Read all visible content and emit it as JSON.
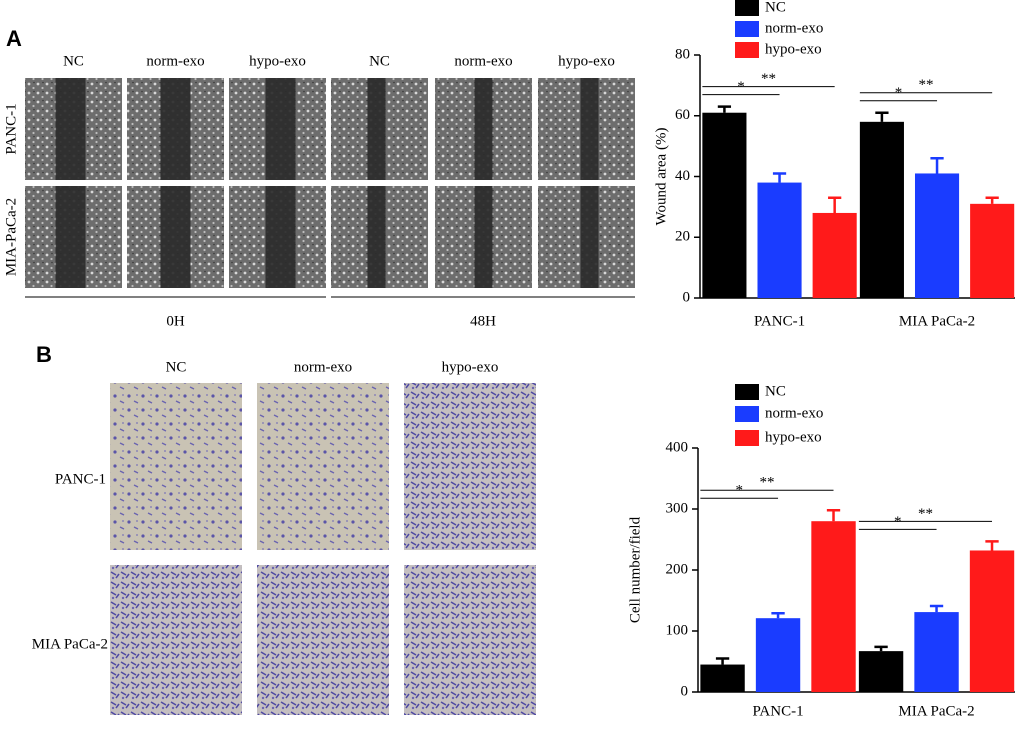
{
  "panel_a": {
    "label": "A",
    "columns": [
      "NC",
      "norm-exo",
      "hypo-exo",
      "NC",
      "norm-exo",
      "hypo-exo"
    ],
    "rows": [
      "PANC-1",
      "MIA-PaCa-2"
    ],
    "timepoints": [
      "0H",
      "48H"
    ]
  },
  "panel_b": {
    "label": "B",
    "columns": [
      "NC",
      "norm-exo",
      "hypo-exo"
    ],
    "rows": [
      "PANC-1",
      "MIA PaCa-2"
    ]
  },
  "chart_data": [
    {
      "type": "bar",
      "ylabel": "Wound area (%)",
      "categories": [
        "PANC-1",
        "MIA PaCa-2"
      ],
      "series": [
        {
          "name": "NC",
          "color": "#000000",
          "values": [
            61,
            58
          ],
          "errors": [
            2,
            3
          ]
        },
        {
          "name": "norm-exo",
          "color": "#1a3cff",
          "values": [
            38,
            41
          ],
          "errors": [
            3,
            5
          ]
        },
        {
          "name": "hypo-exo",
          "color": "#ff1a1a",
          "values": [
            28,
            31
          ],
          "errors": [
            5,
            2
          ]
        }
      ],
      "annotations": [
        "*",
        "**",
        "*",
        "**"
      ],
      "ylim": [
        0,
        80
      ],
      "yticks": [
        0,
        20,
        40,
        60,
        80
      ]
    },
    {
      "type": "bar",
      "ylabel": "Cell number/field",
      "categories": [
        "PANC-1",
        "MIA PaCa-2"
      ],
      "series": [
        {
          "name": "NC",
          "color": "#000000",
          "values": [
            45,
            67
          ],
          "errors": [
            10,
            7
          ]
        },
        {
          "name": "norm-exo",
          "color": "#1a3cff",
          "values": [
            121,
            131
          ],
          "errors": [
            8,
            10
          ]
        },
        {
          "name": "hypo-exo",
          "color": "#ff1a1a",
          "values": [
            280,
            232
          ],
          "errors": [
            18,
            15
          ]
        }
      ],
      "annotations": [
        "*",
        "**",
        "*",
        "**"
      ],
      "ylim": [
        0,
        400
      ],
      "yticks": [
        0,
        100,
        200,
        300,
        400
      ]
    }
  ]
}
